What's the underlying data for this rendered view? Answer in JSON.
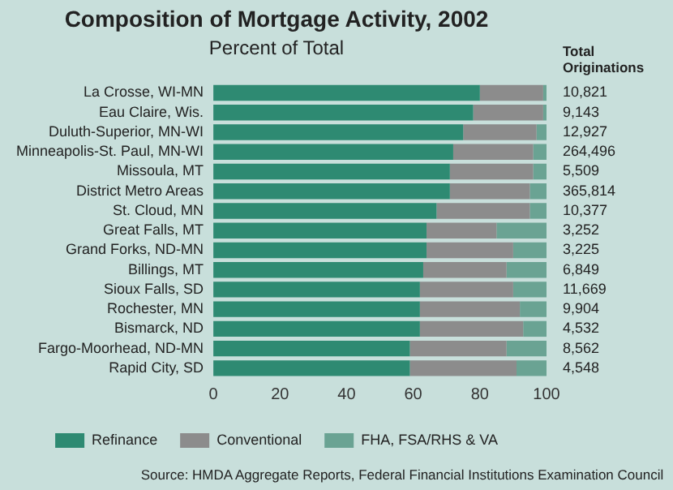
{
  "chart_data": {
    "type": "bar",
    "orientation": "horizontal",
    "stacked": true,
    "title": "Composition of Mortgage Activity, 2002",
    "subtitle": "Percent of Total",
    "categories": [
      "La Crosse, WI-MN",
      "Eau Claire, Wis.",
      "Duluth-Superior, MN-WI",
      "Minneapolis-St. Paul, MN-WI",
      "Missoula, MT",
      "District Metro Areas",
      "St. Cloud, MN",
      "Great Falls, MT",
      "Grand Forks, ND-MN",
      "Billings, MT",
      "Sioux Falls, SD",
      "Rochester, MN",
      "Bismarck, ND",
      "Fargo-Moorhead, ND-MN",
      "Rapid City, SD"
    ],
    "series": [
      {
        "name": "Refinance",
        "color": "#2e8a72",
        "values": [
          80,
          78,
          75,
          72,
          71,
          71,
          67,
          64,
          64,
          63,
          62,
          62,
          62,
          59,
          59
        ]
      },
      {
        "name": "Conventional",
        "color": "#8c8c8c",
        "values": [
          19,
          21,
          22,
          24,
          25,
          24,
          28,
          21,
          26,
          25,
          28,
          30,
          31,
          29,
          32
        ]
      },
      {
        "name": "FHA, FSA/RHS & VA",
        "color": "#6aa393",
        "values": [
          1,
          1,
          3,
          4,
          4,
          5,
          5,
          15,
          10,
          12,
          10,
          8,
          7,
          12,
          9
        ]
      }
    ],
    "xlim": [
      0,
      100
    ],
    "xticks": [
      0,
      20,
      40,
      60,
      80,
      100
    ],
    "grid": false,
    "legend": "bottom",
    "annotations": [
      "Total Originations",
      "10,821",
      "9,143",
      "12,927",
      "264,496",
      "5,509",
      "365,814",
      "10,377",
      "3,252",
      "3,225",
      "6,849",
      "11,669",
      "9,904",
      "4,532",
      "8,562",
      "4,548",
      "Source: HMDA Aggregate Reports, Federal Financial Institutions Examination Council"
    ]
  }
}
